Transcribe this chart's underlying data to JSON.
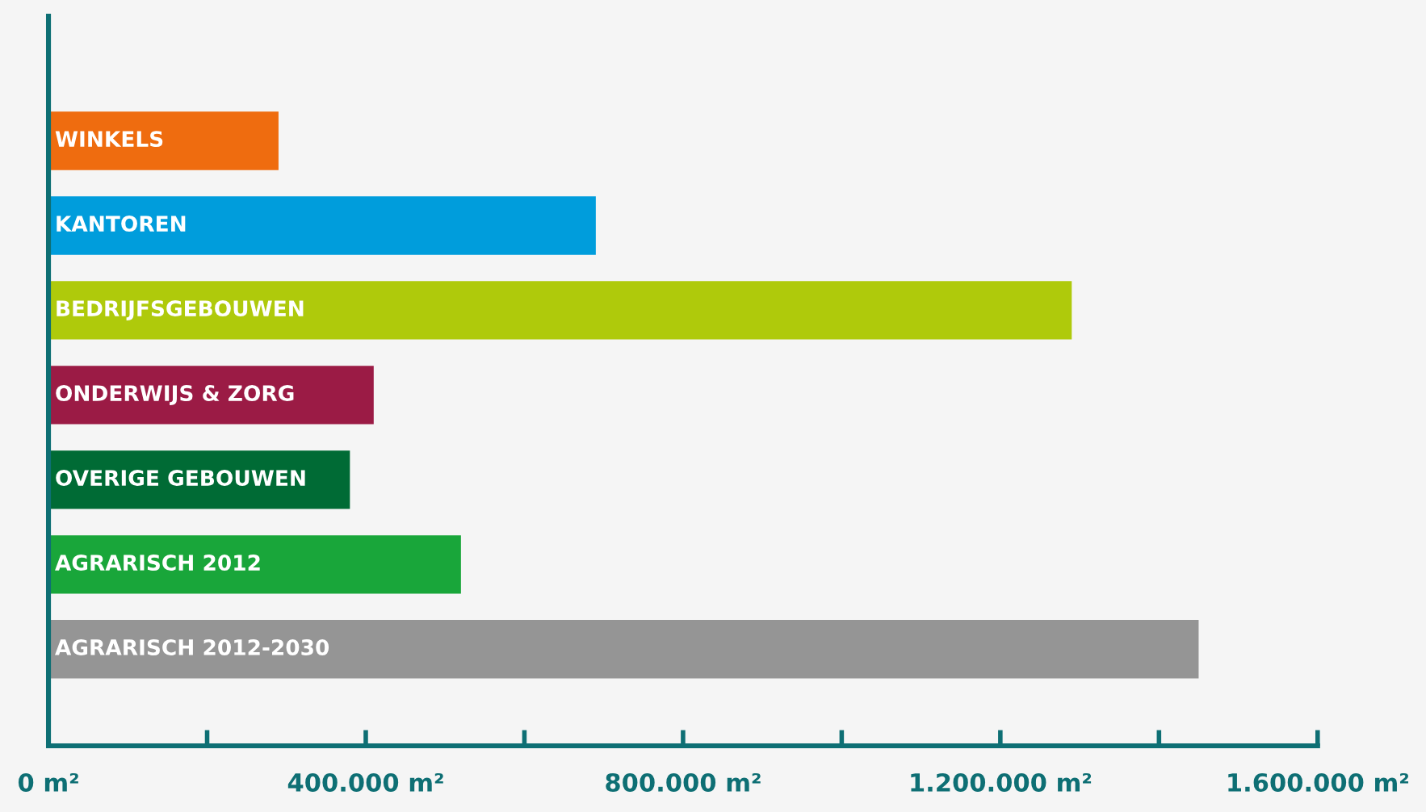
{
  "chart_data": {
    "type": "bar",
    "orientation": "horizontal",
    "categories": [
      "WINKELS",
      "KANTOREN",
      "BEDRIJFSGEBOUWEN",
      "ONDERWIJS & ZORG",
      "OVERIGE GEBOUWEN",
      "AGRARISCH 2012",
      "AGRARISCH 2012-2030"
    ],
    "values": [
      290000,
      690000,
      1290000,
      410000,
      380000,
      520000,
      1450000
    ],
    "colors": [
      "#ef6c0f",
      "#009ddc",
      "#afca0b",
      "#9b1b45",
      "#006b35",
      "#19a63a",
      "#959595"
    ],
    "xlim": [
      0,
      1600000
    ],
    "xticks": [
      {
        "value": 0,
        "label": "0 m²"
      },
      {
        "value": 200000,
        "label": null
      },
      {
        "value": 400000,
        "label": "400.000 m²"
      },
      {
        "value": 600000,
        "label": null
      },
      {
        "value": 800000,
        "label": "800.000 m²"
      },
      {
        "value": 1000000,
        "label": null
      },
      {
        "value": 1200000,
        "label": "1.200.000 m²"
      },
      {
        "value": 1400000,
        "label": null
      },
      {
        "value": 1600000,
        "label": "1.600.000 m²"
      }
    ],
    "grid": false,
    "legend": false
  }
}
